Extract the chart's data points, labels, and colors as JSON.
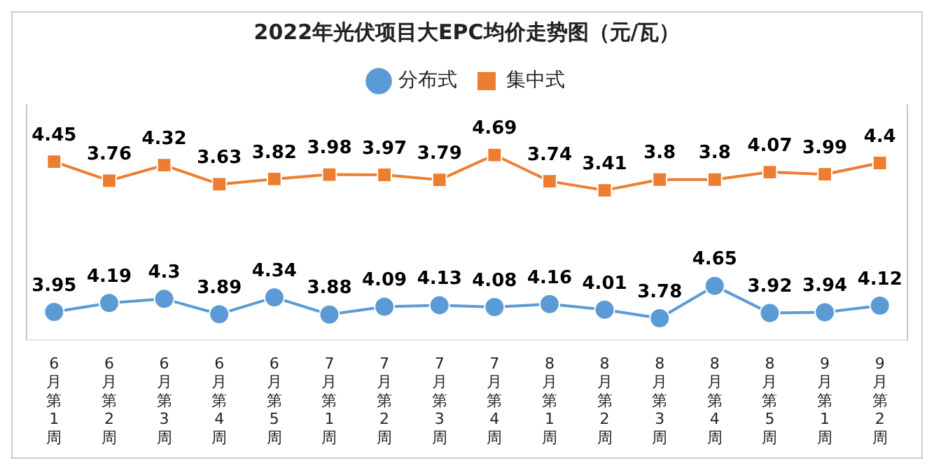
{
  "chart_data": {
    "type": "line",
    "title": "2022年光伏项目大EPC均价走势图（元/瓦）",
    "categories": [
      "6月第1周",
      "6月第2周",
      "6月第3周",
      "6月第4周",
      "6月第5周",
      "7月第1周",
      "7月第2周",
      "7月第3周",
      "7月第4周",
      "8月第1周",
      "8月第2周",
      "8月第3周",
      "8月第4周",
      "8月第5周",
      "9月第1周",
      "9月第2周"
    ],
    "series": [
      {
        "name": "分布式",
        "color": "#5b9bd5",
        "marker": "circle",
        "axis": "y",
        "values": [
          3.95,
          4.19,
          4.3,
          3.89,
          4.34,
          3.88,
          4.09,
          4.13,
          4.08,
          4.16,
          4.01,
          3.78,
          4.65,
          3.92,
          3.94,
          4.12
        ]
      },
      {
        "name": "集中式",
        "color": "#ed7d31",
        "marker": "square",
        "axis": "y2",
        "values": [
          4.45,
          3.76,
          4.32,
          3.63,
          3.82,
          3.98,
          3.97,
          3.79,
          4.69,
          3.74,
          3.41,
          3.8,
          3.8,
          4.07,
          3.99,
          4.4
        ]
      }
    ],
    "ylim": [
      3.2,
      9.5
    ],
    "y2lim": [
      -2,
      6.5
    ],
    "tick_labels": "x",
    "data_labels": true,
    "legend": "top",
    "grid": false
  }
}
